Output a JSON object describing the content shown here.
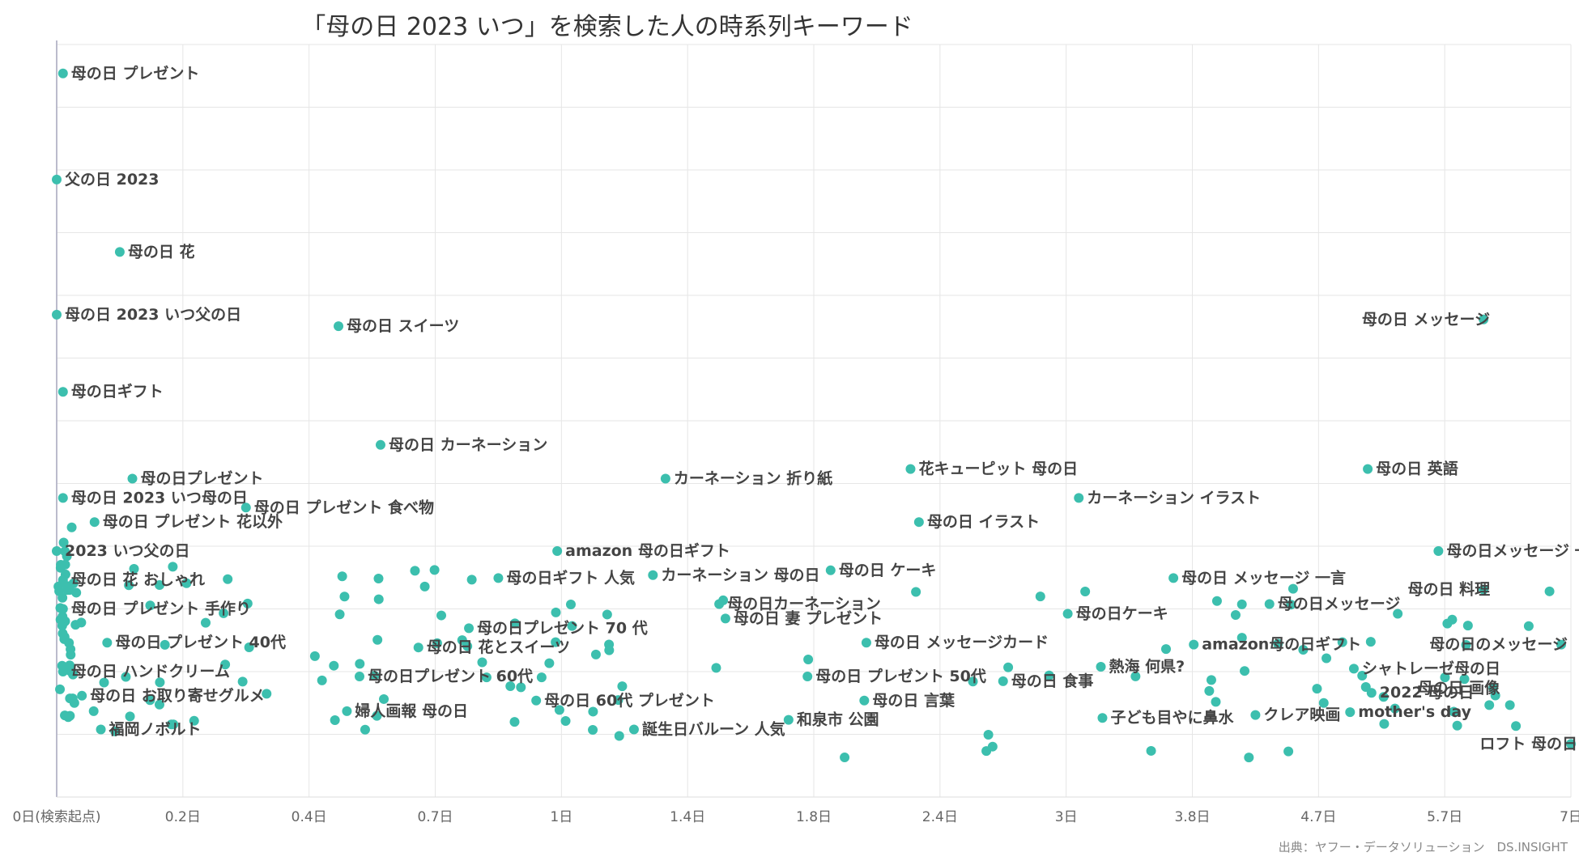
{
  "chart_data": {
    "type": "scatter",
    "title": "「母の日 2023 いつ」を検索した人の時系列キーワード",
    "source": "出典：ヤフー・データソリューション　DS.INSIGHT",
    "xlabel": "",
    "ylabel": "",
    "grid": true,
    "x_ticks": [
      "0日(検索起点)",
      "0.2日",
      "0.4日",
      "0.7日",
      "1日",
      "1.4日",
      "1.8日",
      "2.4日",
      "3日",
      "3.8日",
      "4.7日",
      "5.7日",
      "7日"
    ],
    "x_scale": "non-linear (tick positions evenly spaced)",
    "marker_color": "#3cbfae",
    "labeled_points": [
      {
        "label": "母の日 プレゼント",
        "x": 0.01,
        "y": 95
      },
      {
        "label": "父の日 2023",
        "x": 0.0,
        "y": 84
      },
      {
        "label": "母の日 花",
        "x": 0.1,
        "y": 76.5
      },
      {
        "label": "母の日 2023 いつ父の日",
        "x": 0.0,
        "y": 70
      },
      {
        "label": "母の日 スイーツ",
        "x": 0.47,
        "y": 68.8
      },
      {
        "label": "母の日ギフト",
        "x": 0.01,
        "y": 62
      },
      {
        "label": "母の日 カーネーション",
        "x": 0.57,
        "y": 56.5
      },
      {
        "label": "母の日プレゼント",
        "x": 0.12,
        "y": 53
      },
      {
        "label": "カーネーション 折り紙",
        "x": 1.33,
        "y": 53
      },
      {
        "label": "花キューピット 母の日",
        "x": 2.26,
        "y": 54
      },
      {
        "label": "母の日 英語",
        "x": 5.09,
        "y": 54
      },
      {
        "label": "母の日 メッセージ",
        "x": 6.1,
        "y": 69.5
      },
      {
        "label": "母の日 2023 いつ母の日",
        "x": 0.01,
        "y": 51
      },
      {
        "label": "母の日 プレゼント 食べ物",
        "x": 0.3,
        "y": 50
      },
      {
        "label": "カーネーション イラスト",
        "x": 3.08,
        "y": 51
      },
      {
        "label": "母の日 プレゼント 花以外",
        "x": 0.06,
        "y": 48.5
      },
      {
        "label": "母の日 イラスト",
        "x": 2.3,
        "y": 48.5
      },
      {
        "label": "2023 いつ父の日",
        "x": 0.0,
        "y": 45.5
      },
      {
        "label": "amazon 母の日ギフト",
        "x": 0.99,
        "y": 45.5
      },
      {
        "label": "母の日メッセージ 一言",
        "x": 5.65,
        "y": 45.5
      },
      {
        "label": "母の日 ケーキ",
        "x": 1.88,
        "y": 43.5
      },
      {
        "label": "母の日 花 おしゃれ",
        "x": 0.01,
        "y": 42.5
      },
      {
        "label": "母の日ギフト 人気",
        "x": 0.85,
        "y": 42.7
      },
      {
        "label": "カーネーション 母の日",
        "x": 1.29,
        "y": 43
      },
      {
        "label": "母の日 メッセージ 一言",
        "x": 3.68,
        "y": 42.7
      },
      {
        "label": "母の日 料理",
        "x": 6.1,
        "y": 41.5
      },
      {
        "label": "母の日 プレゼント 手作り",
        "x": 0.01,
        "y": 39.5
      },
      {
        "label": "母の日カーネーション",
        "x": 1.5,
        "y": 40
      },
      {
        "label": "母の日メッセージ",
        "x": 4.35,
        "y": 40
      },
      {
        "label": "母の日ケーキ",
        "x": 3.01,
        "y": 39
      },
      {
        "label": "母の日 妻 プレゼント",
        "x": 1.52,
        "y": 38.5
      },
      {
        "label": "母の日プレゼント 70 代",
        "x": 0.78,
        "y": 37.5
      },
      {
        "label": "母の日 プレゼント 40代",
        "x": 0.08,
        "y": 36
      },
      {
        "label": "母の日 花とスイーツ",
        "x": 0.66,
        "y": 35.5
      },
      {
        "label": "母の日 メッセージカード",
        "x": 2.05,
        "y": 36
      },
      {
        "label": "amazon母の日ギフト",
        "x": 3.81,
        "y": 35.8
      },
      {
        "label": "母の日のメッセージ",
        "x": 6.9,
        "y": 35.8
      },
      {
        "label": "母の日 ハンドクリーム",
        "x": 0.01,
        "y": 33
      },
      {
        "label": "熱海 何県?",
        "x": 3.22,
        "y": 33.5
      },
      {
        "label": "シャトレーゼ母の日",
        "x": 4.98,
        "y": 33.3
      },
      {
        "label": "母の日プレゼント 60代",
        "x": 0.52,
        "y": 32.5
      },
      {
        "label": "母の日 プレゼント 50代",
        "x": 1.78,
        "y": 32.5
      },
      {
        "label": "母の日 食事",
        "x": 2.7,
        "y": 32
      },
      {
        "label": "母の日 お取り寄せグルメ",
        "x": 0.04,
        "y": 30.5
      },
      {
        "label": "母の日 60代 プレゼント",
        "x": 0.94,
        "y": 30
      },
      {
        "label": "母の日 言葉",
        "x": 2.04,
        "y": 30
      },
      {
        "label": "2022 母の日",
        "x": 5.12,
        "y": 30.8
      },
      {
        "label": "母の日 画像",
        "x": 6.2,
        "y": 31.3
      },
      {
        "label": "福岡ノボルト",
        "x": 0.07,
        "y": 27
      },
      {
        "label": "婦人画報 母の日",
        "x": 0.49,
        "y": 28.9
      },
      {
        "label": "誕生日バルーン 人気",
        "x": 1.23,
        "y": 27
      },
      {
        "label": "和泉市 公園",
        "x": 1.72,
        "y": 28
      },
      {
        "label": "子ども目やに鼻水",
        "x": 3.23,
        "y": 28.2
      },
      {
        "label": "クレア映画",
        "x": 4.25,
        "y": 28.5
      },
      {
        "label": "mother's day",
        "x": 4.95,
        "y": 28.8
      },
      {
        "label": "ロフト 母の日",
        "x": 7.0,
        "y": 25.5
      }
    ],
    "unlabeled_point_count": 170
  }
}
